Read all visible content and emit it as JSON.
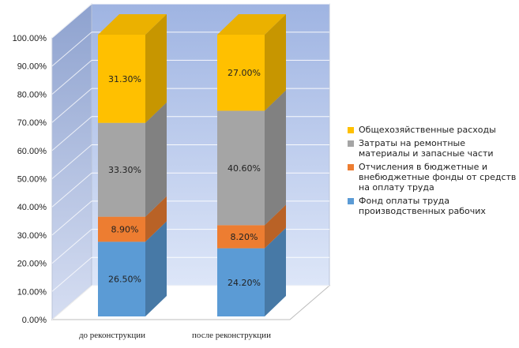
{
  "chart_data": {
    "type": "bar",
    "stacked": true,
    "three_d": true,
    "categories": [
      "до реконструкции",
      "после реконструкции"
    ],
    "series": [
      {
        "name": "Фонд оплаты труда производственных рабочих",
        "values": [
          26.5,
          24.2
        ],
        "labels": [
          "26.50%",
          "24.20%"
        ],
        "color": "#5b9bd5"
      },
      {
        "name": "Отчисления в бюджетные и внебюджетные фонды от средств на оплату труда",
        "values": [
          8.9,
          8.2
        ],
        "labels": [
          "8.90%",
          "8.20%"
        ],
        "color": "#ed7d31"
      },
      {
        "name": "Затраты на ремонтные материалы и запасные части",
        "values": [
          33.3,
          40.6
        ],
        "labels": [
          "33.30%",
          "40.60%"
        ],
        "color": "#a5a5a5"
      },
      {
        "name": "Общехозяйственные расходы",
        "values": [
          31.3,
          27.0
        ],
        "labels": [
          "31.30%",
          "27.00%"
        ],
        "color": "#ffc000"
      }
    ],
    "ylim": [
      0,
      100
    ],
    "yticks": [
      "0.00%",
      "10.00%",
      "20.00%",
      "30.00%",
      "40.00%",
      "50.00%",
      "60.00%",
      "70.00%",
      "80.00%",
      "90.00%",
      "100.00%"
    ],
    "legend_position": "right",
    "grid": true,
    "xlabel": "",
    "ylabel": "",
    "title": ""
  }
}
